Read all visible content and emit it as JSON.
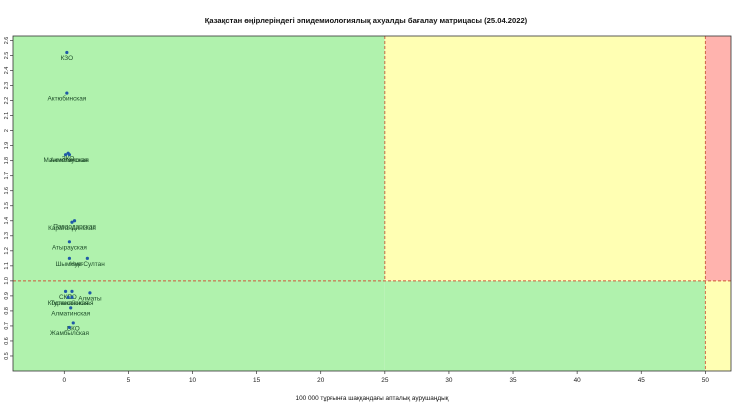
{
  "chart_data": {
    "type": "scatter",
    "title": "Қазақстан өңірлеріндегі эпидемиологиялық ахуалды бағалау матрицасы  (25.04.2022)",
    "xlabel": "100 000 тұрғынға шаққандағы апталық аурушаңдық",
    "ylabel": "",
    "xlim": [
      -4,
      52
    ],
    "ylim": [
      0.4,
      2.63
    ],
    "x_ticks": [
      0,
      5,
      10,
      15,
      20,
      25,
      30,
      35,
      40,
      45,
      50
    ],
    "y_ticks": [
      0.5,
      0.6,
      0.7,
      0.8,
      0.9,
      1.0,
      1.1,
      1.2,
      1.3,
      1.4,
      1.5,
      1.6,
      1.7,
      1.8,
      1.9,
      2.0,
      2.1,
      2.2,
      2.3,
      2.4,
      2.5,
      2.6
    ],
    "y_tick_labels": [
      "0.5",
      "0.6",
      "0.7",
      "0.8",
      "0.9",
      "1.0",
      "1.1",
      "1.2",
      "1.3",
      "1.4",
      "1.5",
      "1.6",
      "1.7",
      "1.8",
      "1.9",
      "2",
      "2.1",
      "2.2",
      "2.3",
      "2.4",
      "2.5",
      "2.6"
    ],
    "thresholds": {
      "x": 25,
      "x2": 50,
      "y": 1.0
    },
    "zones": [
      {
        "x": [
          -4,
          25
        ],
        "y": [
          0.4,
          2.63
        ],
        "color": "#b0f2ad"
      },
      {
        "x": [
          25,
          50
        ],
        "y": [
          0.4,
          1.0
        ],
        "color": "#b0f2ad"
      },
      {
        "x": [
          25,
          50
        ],
        "y": [
          1.0,
          2.63
        ],
        "color": "#ffffb3"
      },
      {
        "x": [
          50,
          52
        ],
        "y": [
          1.0,
          2.63
        ],
        "color": "#ffb3ae"
      },
      {
        "x": [
          50,
          52
        ],
        "y": [
          0.4,
          1.0
        ],
        "color": "#ffffb3"
      }
    ],
    "threshold_line_color": "#cc5a3a",
    "point_color": "#1f5aa6",
    "points": [
      {
        "label": "КЗО",
        "x": 0.2,
        "y": 2.52
      },
      {
        "label": "Актюбинская",
        "x": 0.2,
        "y": 2.25
      },
      {
        "label": "ЗКО",
        "x": 0.3,
        "y": 1.85
      },
      {
        "label": "Мангистауская",
        "x": 0.1,
        "y": 1.84
      },
      {
        "label": "Акмолинская",
        "x": 0.4,
        "y": 1.84
      },
      {
        "label": "Павлодарская",
        "x": 0.8,
        "y": 1.4
      },
      {
        "label": "Карагандинская",
        "x": 0.6,
        "y": 1.39
      },
      {
        "label": "Атырауская",
        "x": 0.4,
        "y": 1.26
      },
      {
        "label": "Нур-Султан",
        "x": 1.8,
        "y": 1.15
      },
      {
        "label": "Шымкент",
        "x": 0.4,
        "y": 1.15
      },
      {
        "label": "Алматы",
        "x": 2.0,
        "y": 0.92
      },
      {
        "label": "СКО",
        "x": 0.1,
        "y": 0.93
      },
      {
        "label": "ПО",
        "x": 0.6,
        "y": 0.93
      },
      {
        "label": "Туркестанская",
        "x": 0.6,
        "y": 0.89
      },
      {
        "label": "Костанайская",
        "x": 0.3,
        "y": 0.89
      },
      {
        "label": "Алматинская",
        "x": 0.5,
        "y": 0.82
      },
      {
        "label": "ВКО",
        "x": 0.7,
        "y": 0.72
      },
      {
        "label": "Жамбылская",
        "x": 0.4,
        "y": 0.69
      }
    ]
  }
}
